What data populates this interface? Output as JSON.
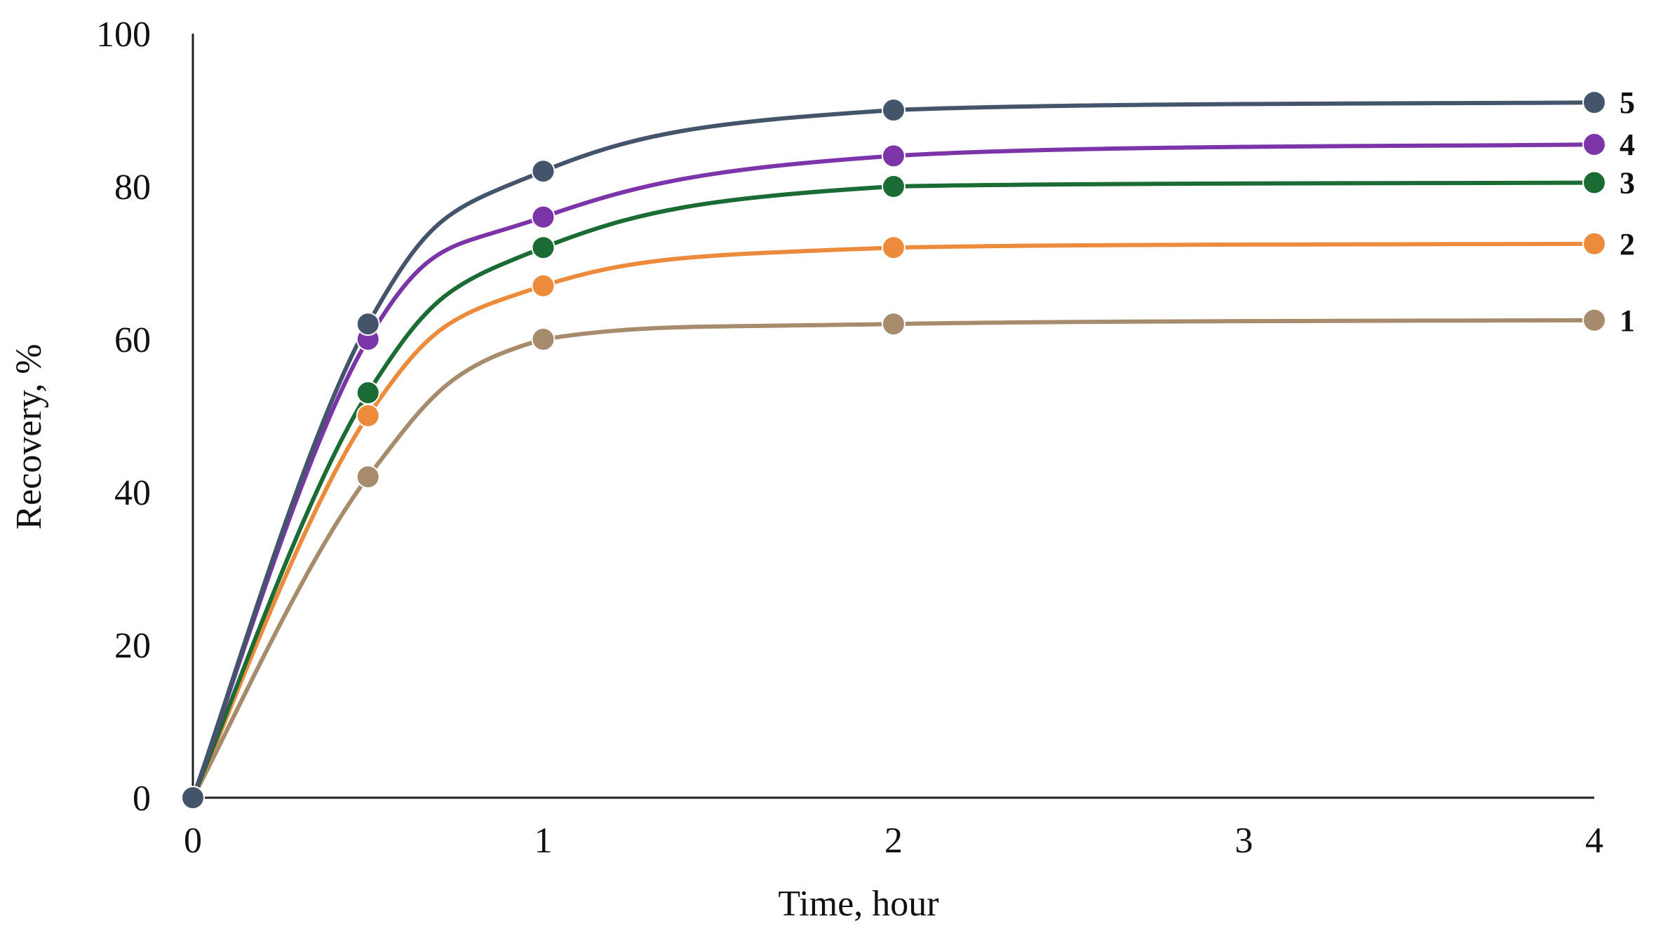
{
  "chart_data": {
    "type": "line",
    "title": "",
    "xlabel": "Time,  hour",
    "ylabel": "Recovery,  %",
    "x_ticks": [
      0,
      1,
      2,
      3,
      4
    ],
    "y_ticks": [
      0,
      20,
      40,
      60,
      80,
      100
    ],
    "xlim": [
      0,
      4
    ],
    "ylim": [
      0,
      100
    ],
    "grid": false,
    "legend": "labels at line ends (right)",
    "x": [
      0,
      0.5,
      1,
      2,
      4
    ],
    "series": [
      {
        "name": "1",
        "color": "#A68B6C",
        "values": [
          0,
          42,
          60,
          62,
          62.5
        ]
      },
      {
        "name": "2",
        "color": "#ED8B3C",
        "values": [
          0,
          50,
          67,
          72,
          72.5
        ]
      },
      {
        "name": "3",
        "color": "#1A6B34",
        "values": [
          0,
          53,
          72,
          80,
          80.5
        ]
      },
      {
        "name": "4",
        "color": "#7B35A8",
        "values": [
          0,
          60,
          76,
          84,
          85.5
        ]
      },
      {
        "name": "5",
        "color": "#44546A",
        "values": [
          0,
          62,
          82,
          90,
          91
        ]
      }
    ]
  }
}
